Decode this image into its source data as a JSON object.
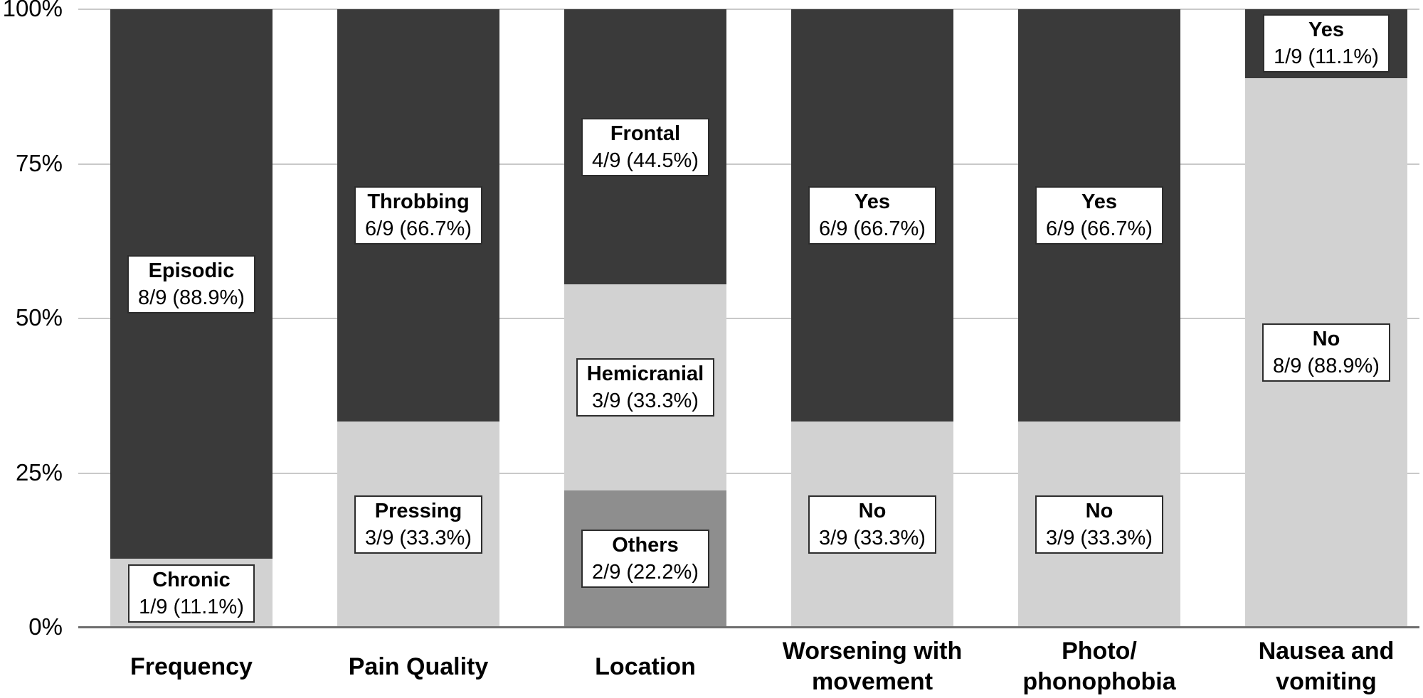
{
  "figure": {
    "background": "#ffffff",
    "text_color": "#000000"
  },
  "chart_data": {
    "type": "bar",
    "variant": "100-percent-stacked-column",
    "title": "",
    "xlabel": "",
    "ylabel": "",
    "ylim": [
      0,
      100
    ],
    "grid": true,
    "legend": "none",
    "denominator_note": "all values are out of 9 subjects",
    "y_ticks": [
      {
        "label": "0%",
        "value": 0
      },
      {
        "label": "25%",
        "value": 25
      },
      {
        "label": "50%",
        "value": 50
      },
      {
        "label": "75%",
        "value": 75
      },
      {
        "label": "100%",
        "value": 100
      }
    ],
    "shade_colors": {
      "dark": "#3a3a3a",
      "light": "#d2d2d2",
      "medium": "#8e8e8e"
    },
    "colors": {
      "gridline": "#c9c9c9",
      "axis_line": "#6e6e6e",
      "labelbox_background": "#ffffff",
      "labelbox_border": "#2d2d2d"
    },
    "columns": [
      {
        "label_lines": [
          "Frequency"
        ],
        "segments_top_to_bottom": [
          {
            "name": "Episodic",
            "fraction": "8/9",
            "percent": 88.9,
            "value_text": "8/9 (88.9%)",
            "shade": "dark"
          },
          {
            "name": "Chronic",
            "fraction": "1/9",
            "percent": 11.1,
            "value_text": "1/9 (11.1%)",
            "shade": "light"
          }
        ]
      },
      {
        "label_lines": [
          "Pain Quality"
        ],
        "segments_top_to_bottom": [
          {
            "name": "Throbbing",
            "fraction": "6/9",
            "percent": 66.7,
            "value_text": "6/9 (66.7%)",
            "shade": "dark"
          },
          {
            "name": "Pressing",
            "fraction": "3/9",
            "percent": 33.3,
            "value_text": "3/9 (33.3%)",
            "shade": "light"
          }
        ]
      },
      {
        "label_lines": [
          "Location"
        ],
        "segments_top_to_bottom": [
          {
            "name": "Frontal",
            "fraction": "4/9",
            "percent": 44.5,
            "value_text": "4/9 (44.5%)",
            "shade": "dark"
          },
          {
            "name": "Hemicranial",
            "fraction": "3/9",
            "percent": 33.3,
            "value_text": "3/9 (33.3%)",
            "shade": "light"
          },
          {
            "name": "Others",
            "fraction": "2/9",
            "percent": 22.2,
            "value_text": "2/9 (22.2%)",
            "shade": "medium"
          }
        ]
      },
      {
        "label_lines": [
          "Worsening with",
          "movement"
        ],
        "segments_top_to_bottom": [
          {
            "name": "Yes",
            "fraction": "6/9",
            "percent": 66.7,
            "value_text": "6/9 (66.7%)",
            "shade": "dark"
          },
          {
            "name": "No",
            "fraction": "3/9",
            "percent": 33.3,
            "value_text": "3/9 (33.3%)",
            "shade": "light"
          }
        ]
      },
      {
        "label_lines": [
          "Photo/",
          "phonophobia"
        ],
        "segments_top_to_bottom": [
          {
            "name": "Yes",
            "fraction": "6/9",
            "percent": 66.7,
            "value_text": "6/9 (66.7%)",
            "shade": "dark"
          },
          {
            "name": "No",
            "fraction": "3/9",
            "percent": 33.3,
            "value_text": "3/9 (33.3%)",
            "shade": "light"
          }
        ]
      },
      {
        "label_lines": [
          "Nausea and",
          "vomiting"
        ],
        "segments_top_to_bottom": [
          {
            "name": "Yes",
            "fraction": "1/9",
            "percent": 11.1,
            "value_text": "1/9 (11.1%)",
            "shade": "dark"
          },
          {
            "name": "No",
            "fraction": "8/9",
            "percent": 88.9,
            "value_text": "8/9 (88.9%)",
            "shade": "light"
          }
        ]
      }
    ]
  }
}
